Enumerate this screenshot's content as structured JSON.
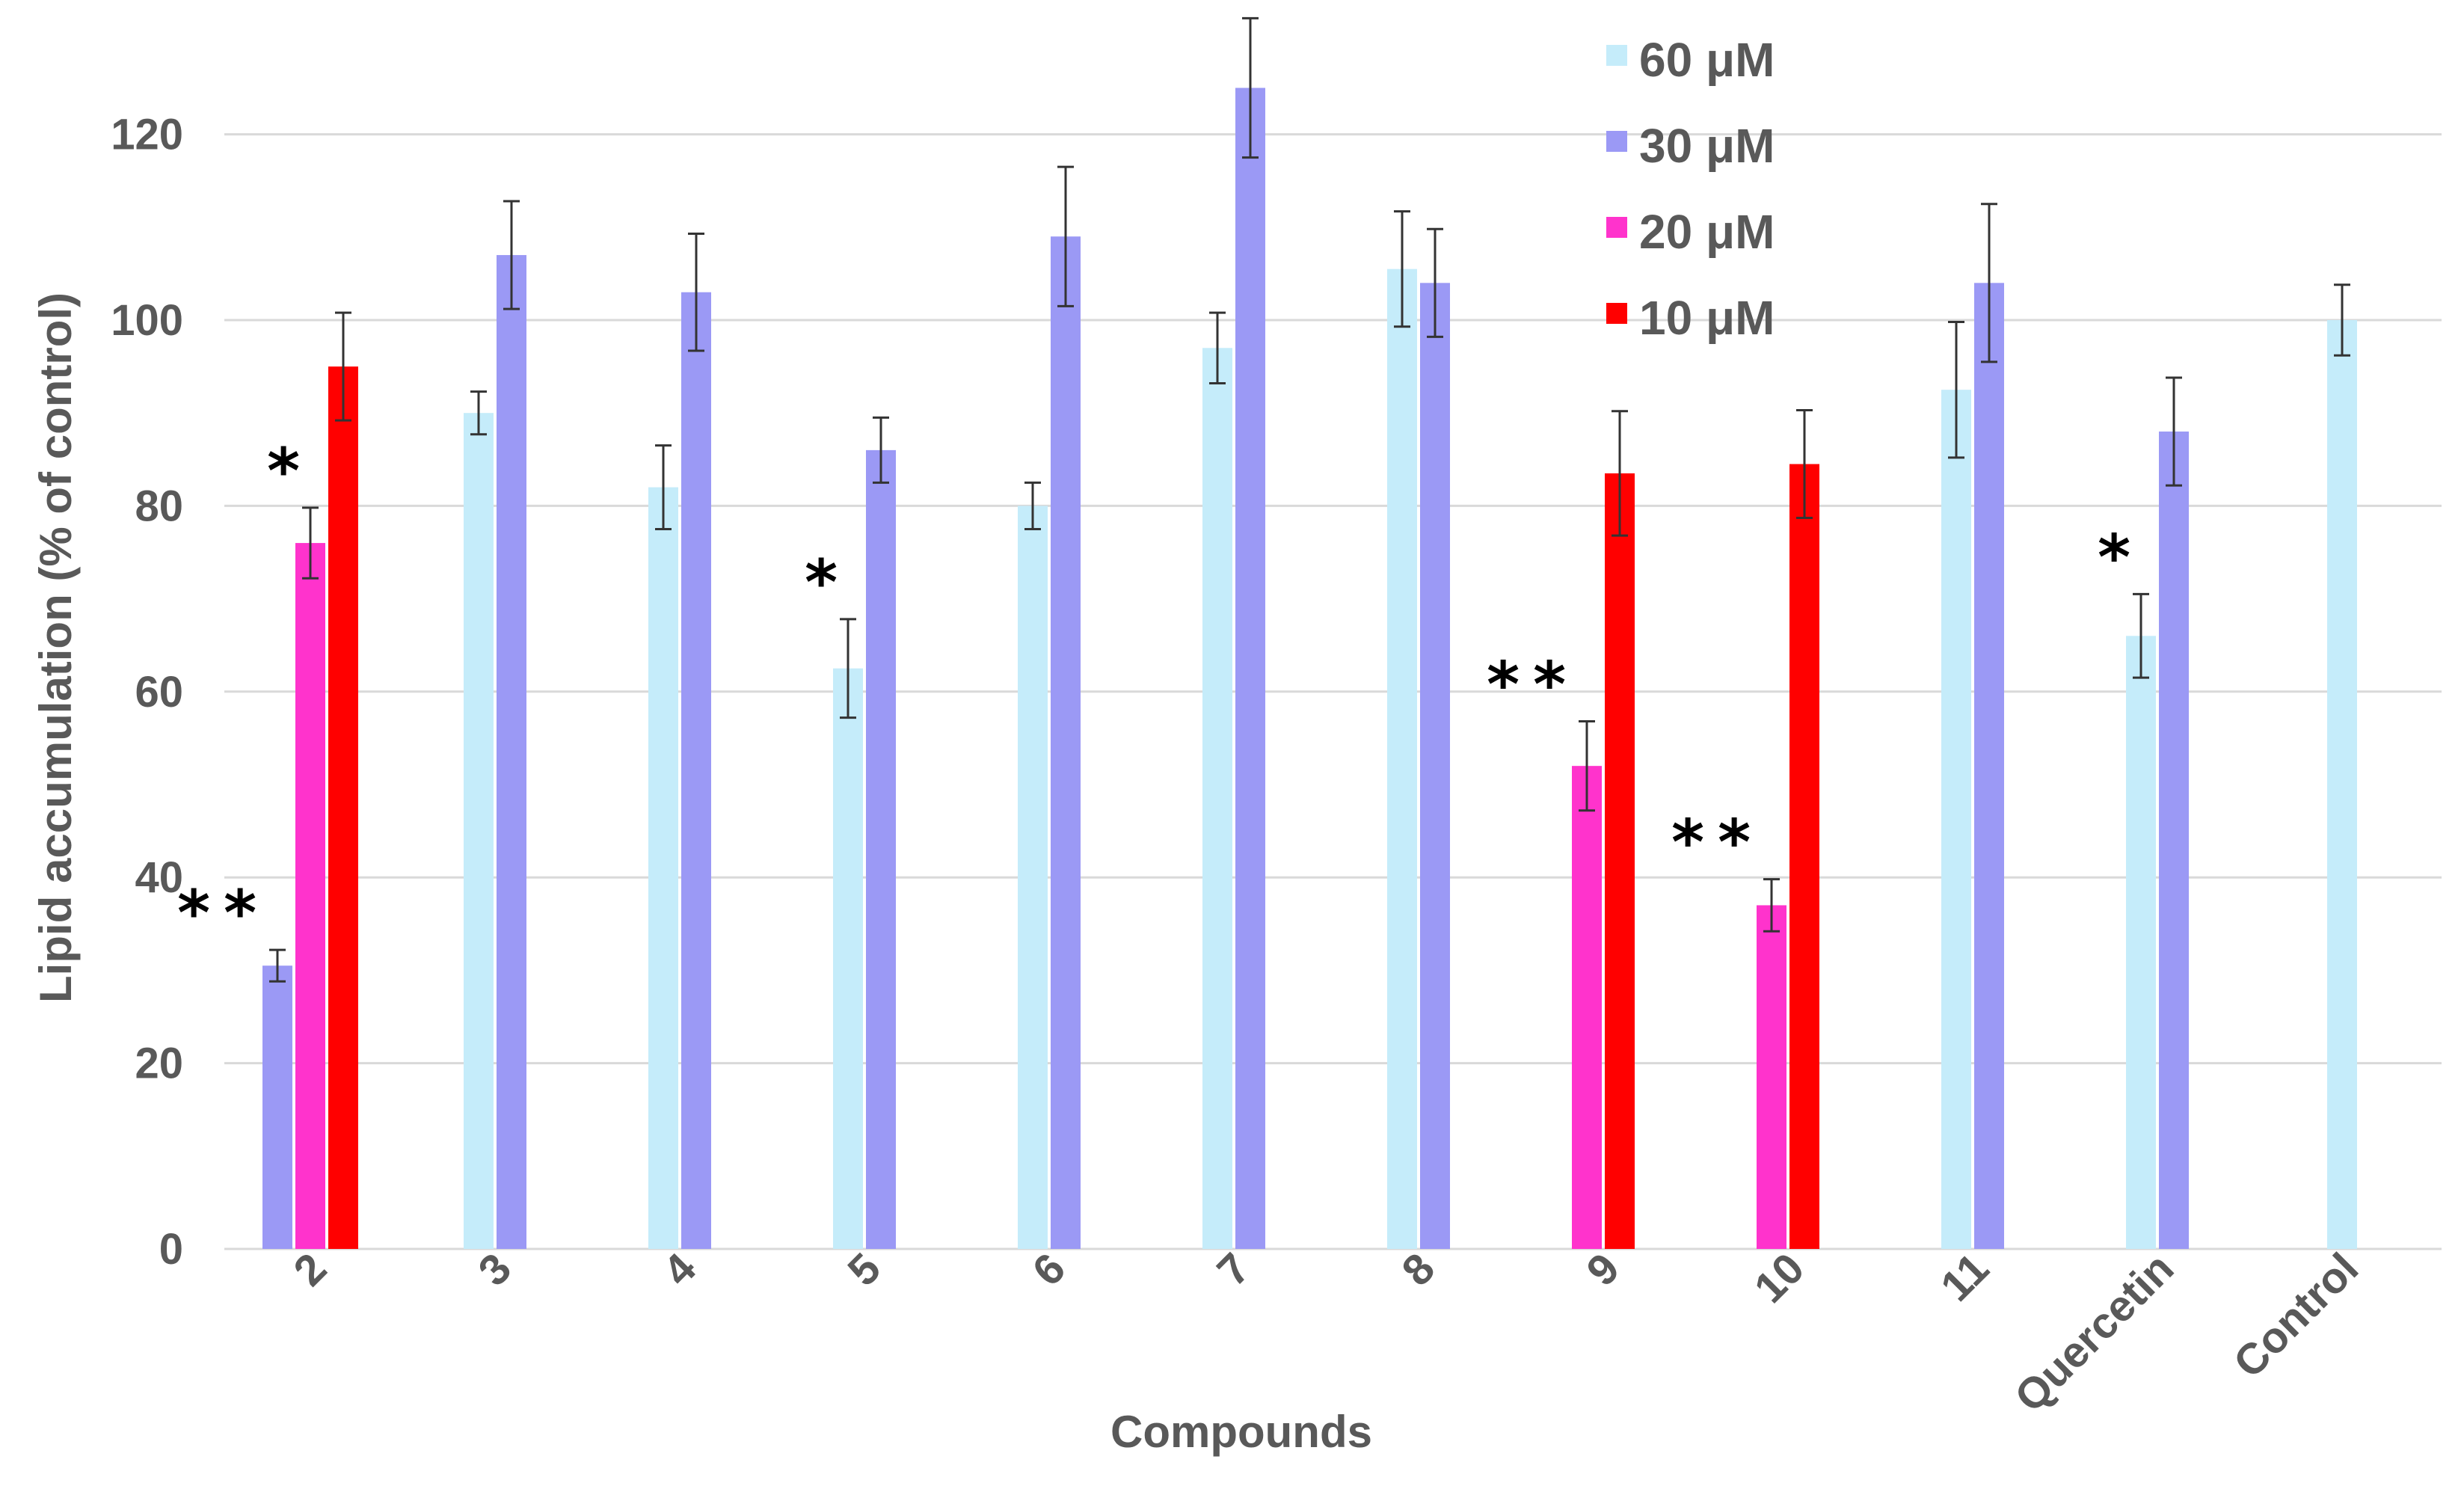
{
  "chart_data": {
    "type": "bar",
    "title": "",
    "xlabel": "Compounds",
    "ylabel": "Lipid accumulation (% of control)",
    "ylim": [
      0,
      130
    ],
    "yticks": [
      0,
      20,
      40,
      60,
      80,
      100,
      120
    ],
    "grid": true,
    "legend_position": "top-center",
    "categories": [
      "2",
      "3",
      "4",
      "5",
      "6",
      "7",
      "8",
      "9",
      "10",
      "11",
      "Quercetin",
      "Control"
    ],
    "series": [
      {
        "name": "60 μM",
        "color": "#c5ecfa",
        "values": [
          null,
          90,
          82,
          62.5,
          80,
          97,
          105.5,
          null,
          null,
          92.5,
          66,
          100
        ],
        "errors": [
          null,
          2.3,
          4.5,
          5.3,
          2.5,
          3.8,
          6.2,
          null,
          null,
          7.3,
          4.5,
          3.8
        ]
      },
      {
        "name": "30 μM",
        "color": "#9b99f5",
        "values": [
          30.5,
          107,
          103,
          86,
          109,
          125,
          104,
          null,
          null,
          104,
          88,
          null
        ],
        "errors": [
          1.7,
          5.8,
          6.3,
          3.5,
          7.5,
          7.5,
          5.8,
          null,
          null,
          8.5,
          5.8,
          null
        ]
      },
      {
        "name": "20 μM",
        "color": "#ff33cc",
        "values": [
          76,
          null,
          null,
          null,
          null,
          null,
          null,
          52,
          37,
          null,
          null,
          null
        ],
        "errors": [
          3.8,
          null,
          null,
          null,
          null,
          null,
          null,
          4.8,
          2.8,
          null,
          null,
          null
        ]
      },
      {
        "name": "10 μM",
        "color": "#ff0000",
        "values": [
          95,
          null,
          null,
          null,
          null,
          null,
          null,
          83.5,
          84.5,
          null,
          null,
          null
        ],
        "errors": [
          5.8,
          null,
          null,
          null,
          null,
          null,
          null,
          6.7,
          5.8,
          null,
          null,
          null
        ]
      }
    ],
    "annotations": [
      {
        "category": "2",
        "series": "30 μM",
        "text": "**"
      },
      {
        "category": "2",
        "series": "20 μM",
        "text": "*"
      },
      {
        "category": "5",
        "series": "60 μM",
        "text": "*"
      },
      {
        "category": "9",
        "series": "20 μM",
        "text": "**"
      },
      {
        "category": "10",
        "series": "20 μM",
        "text": "**"
      },
      {
        "category": "Quercetin",
        "series": "60 μM",
        "text": "*"
      }
    ]
  }
}
